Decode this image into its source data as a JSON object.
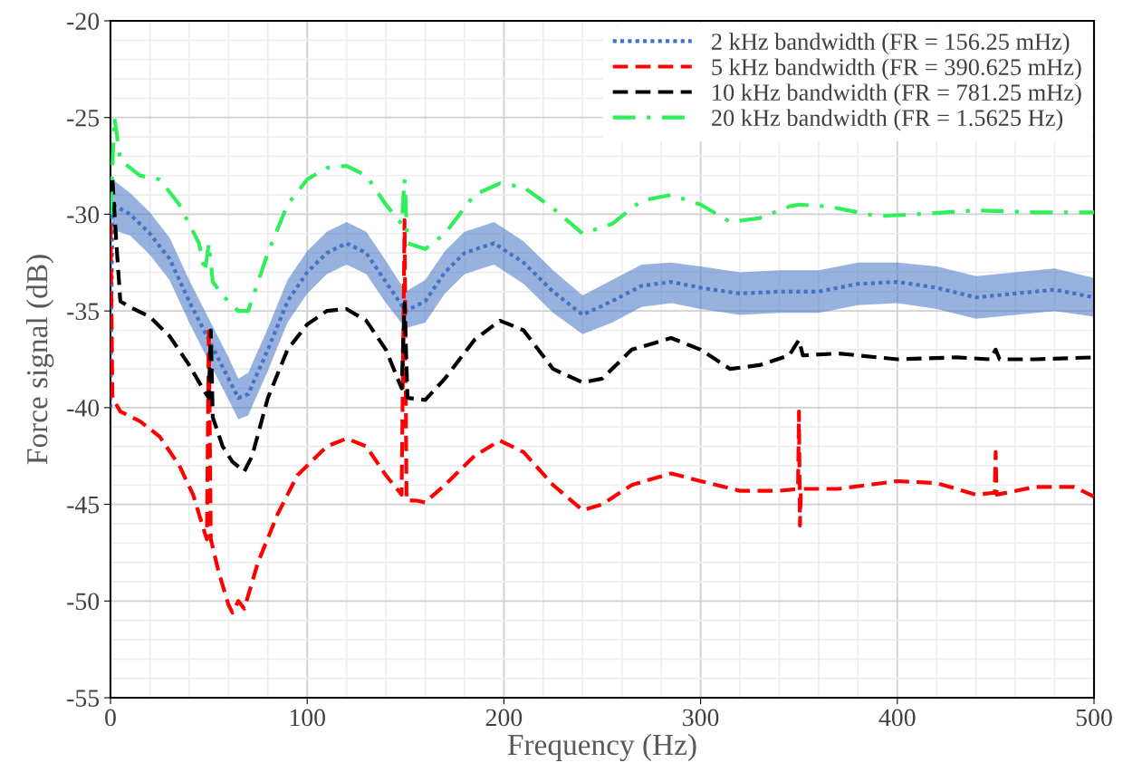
{
  "chart_data": {
    "type": "line",
    "xlabel": "Frequency (Hz)",
    "ylabel": "Force signal (dB)",
    "xlim": [
      0,
      500
    ],
    "xticks": [
      0,
      100,
      200,
      300,
      400,
      500
    ],
    "ylim": [
      -55,
      -20
    ],
    "yticks": [
      -55,
      -50,
      -45,
      -40,
      -35,
      -30,
      -25,
      -20
    ],
    "grid": true,
    "legend": "top right",
    "series": [
      {
        "name": "2 kHz bandwidth (FR = 156.25 mHz)",
        "color": "#4472c4",
        "line_style": "dotted",
        "x": [
          0,
          1,
          10,
          20,
          30,
          40,
          50,
          60,
          65,
          70,
          80,
          90,
          100,
          110,
          120,
          130,
          140,
          150,
          160,
          170,
          180,
          195,
          210,
          225,
          240,
          255,
          270,
          285,
          300,
          320,
          340,
          360,
          380,
          400,
          420,
          440,
          460,
          480,
          500
        ],
        "values": [
          -40,
          -29.5,
          -30,
          -31,
          -32.3,
          -34.5,
          -36.5,
          -38.5,
          -39.5,
          -39.3,
          -37,
          -34.5,
          -33,
          -32,
          -31.5,
          -32,
          -33.5,
          -35,
          -34.5,
          -33,
          -32,
          -31.5,
          -32.5,
          -34,
          -35.2,
          -34.5,
          -33.7,
          -33.5,
          -33.8,
          -34.1,
          -34,
          -34,
          -33.6,
          -33.5,
          -33.8,
          -34.3,
          -34.1,
          -33.9,
          -34.3
        ],
        "lower": [
          -40,
          -30.8,
          -31.1,
          -32.1,
          -33.4,
          -35.6,
          -37.6,
          -39.6,
          -40.6,
          -40.4,
          -38.1,
          -35.6,
          -34.1,
          -33.1,
          -32.6,
          -33.1,
          -34.6,
          -35.9,
          -35.6,
          -34.1,
          -33.1,
          -32.6,
          -33.6,
          -35.1,
          -36.2,
          -35.6,
          -34.8,
          -34.6,
          -34.9,
          -35.2,
          -35.1,
          -35.1,
          -34.7,
          -34.6,
          -34.9,
          -35.4,
          -35.2,
          -35,
          -35.3
        ],
        "upper": [
          -40,
          -28.2,
          -28.9,
          -29.9,
          -31.2,
          -33.4,
          -35.4,
          -37.4,
          -38.5,
          -38.2,
          -35.9,
          -33.4,
          -31.9,
          -30.9,
          -30.4,
          -30.9,
          -32.4,
          -34,
          -33.4,
          -31.9,
          -30.9,
          -30.4,
          -31.4,
          -32.9,
          -34.2,
          -33.4,
          -32.6,
          -32.5,
          -32.7,
          -33,
          -32.9,
          -32.9,
          -32.5,
          -32.5,
          -32.7,
          -33.2,
          -33,
          -32.8,
          -33.3
        ]
      },
      {
        "name": "5 kHz bandwidth (FR = 390.625 mHz)",
        "color": "#ff0000",
        "line_style": "dashed",
        "x": [
          0,
          1,
          5,
          15,
          25,
          35,
          42,
          48,
          49,
          50,
          51,
          55,
          60,
          62,
          65,
          68,
          75,
          85,
          95,
          110,
          120,
          130,
          140,
          148,
          149.5,
          150.5,
          155,
          160,
          170,
          185,
          198,
          210,
          225,
          240,
          250,
          265,
          285,
          300,
          320,
          340,
          349.5,
          350,
          350.5,
          351,
          370,
          400,
          420,
          440,
          449.5,
          450,
          450.5,
          470,
          490,
          500
        ],
        "values": [
          -30.5,
          -39.5,
          -40.2,
          -40.7,
          -41.5,
          -43,
          -44.5,
          -46.5,
          -46.8,
          -35.8,
          -46.8,
          -48.5,
          -50.2,
          -50.6,
          -50,
          -50.4,
          -48,
          -45.5,
          -43.5,
          -42,
          -41.6,
          -42,
          -43.5,
          -44.5,
          -30.3,
          -44.8,
          -44.8,
          -44.9,
          -44,
          -42.5,
          -41.7,
          -42.3,
          -44,
          -45.3,
          -45,
          -44,
          -43.4,
          -43.8,
          -44.3,
          -44.3,
          -44.2,
          -40.2,
          -46.1,
          -44.2,
          -44.2,
          -43.8,
          -43.9,
          -44.5,
          -44.4,
          -42.3,
          -44.5,
          -44.1,
          -44.1,
          -44.6
        ]
      },
      {
        "name": "10 kHz bandwidth (FR = 781.25 mHz)",
        "color": "#000000",
        "line_style": "dashed",
        "x": [
          1,
          3,
          5,
          10,
          20,
          30,
          40,
          48,
          50,
          51,
          52,
          57,
          62,
          68,
          72,
          80,
          90,
          100,
          110,
          120,
          130,
          140,
          148,
          149.5,
          151,
          160,
          170,
          185,
          198,
          210,
          225,
          240,
          250,
          265,
          285,
          300,
          315,
          330,
          345,
          350,
          352,
          370,
          400,
          430,
          447,
          450,
          452,
          470,
          500
        ],
        "values": [
          -28.2,
          -31.5,
          -34.5,
          -34.8,
          -35.3,
          -36.3,
          -37.8,
          -39.2,
          -39.5,
          -36,
          -40.5,
          -42,
          -42.8,
          -43.3,
          -42.5,
          -39.5,
          -37,
          -35.7,
          -35,
          -34.9,
          -35.5,
          -37,
          -39,
          -34.6,
          -39.5,
          -39.6,
          -38.5,
          -36.5,
          -35.5,
          -36,
          -38,
          -38.7,
          -38.5,
          -37,
          -36.4,
          -37,
          -38,
          -37.8,
          -37.3,
          -36.5,
          -37.3,
          -37.2,
          -37.5,
          -37.4,
          -37.5,
          -37,
          -37.5,
          -37.5,
          -37.4
        ]
      },
      {
        "name": "20 kHz bandwidth (FR = 1.5625 Hz)",
        "color": "#2ef05a",
        "line_style": "dashdot",
        "x": [
          0,
          2,
          5,
          15,
          25,
          35,
          45,
          48,
          50,
          52,
          58,
          65,
          70,
          80,
          90,
          100,
          110,
          120,
          130,
          140,
          148,
          149.5,
          151,
          160,
          170,
          185,
          198,
          210,
          225,
          240,
          255,
          270,
          285,
          300,
          315,
          330,
          345,
          350,
          365,
          390,
          410,
          440,
          470,
          500
        ],
        "values": [
          -30,
          -25,
          -27.2,
          -28,
          -28.2,
          -29.5,
          -31.5,
          -33,
          -31.5,
          -33.5,
          -34.3,
          -35,
          -35,
          -32,
          -29.5,
          -28.2,
          -27.6,
          -27.5,
          -28,
          -29.5,
          -30.5,
          -28.2,
          -31.5,
          -31.8,
          -31,
          -29,
          -28.4,
          -28.6,
          -29.7,
          -31,
          -30.5,
          -29.3,
          -29,
          -29.5,
          -30.4,
          -30.2,
          -29.6,
          -29.5,
          -29.6,
          -30.1,
          -30,
          -29.8,
          -29.9,
          -29.9
        ]
      }
    ]
  }
}
